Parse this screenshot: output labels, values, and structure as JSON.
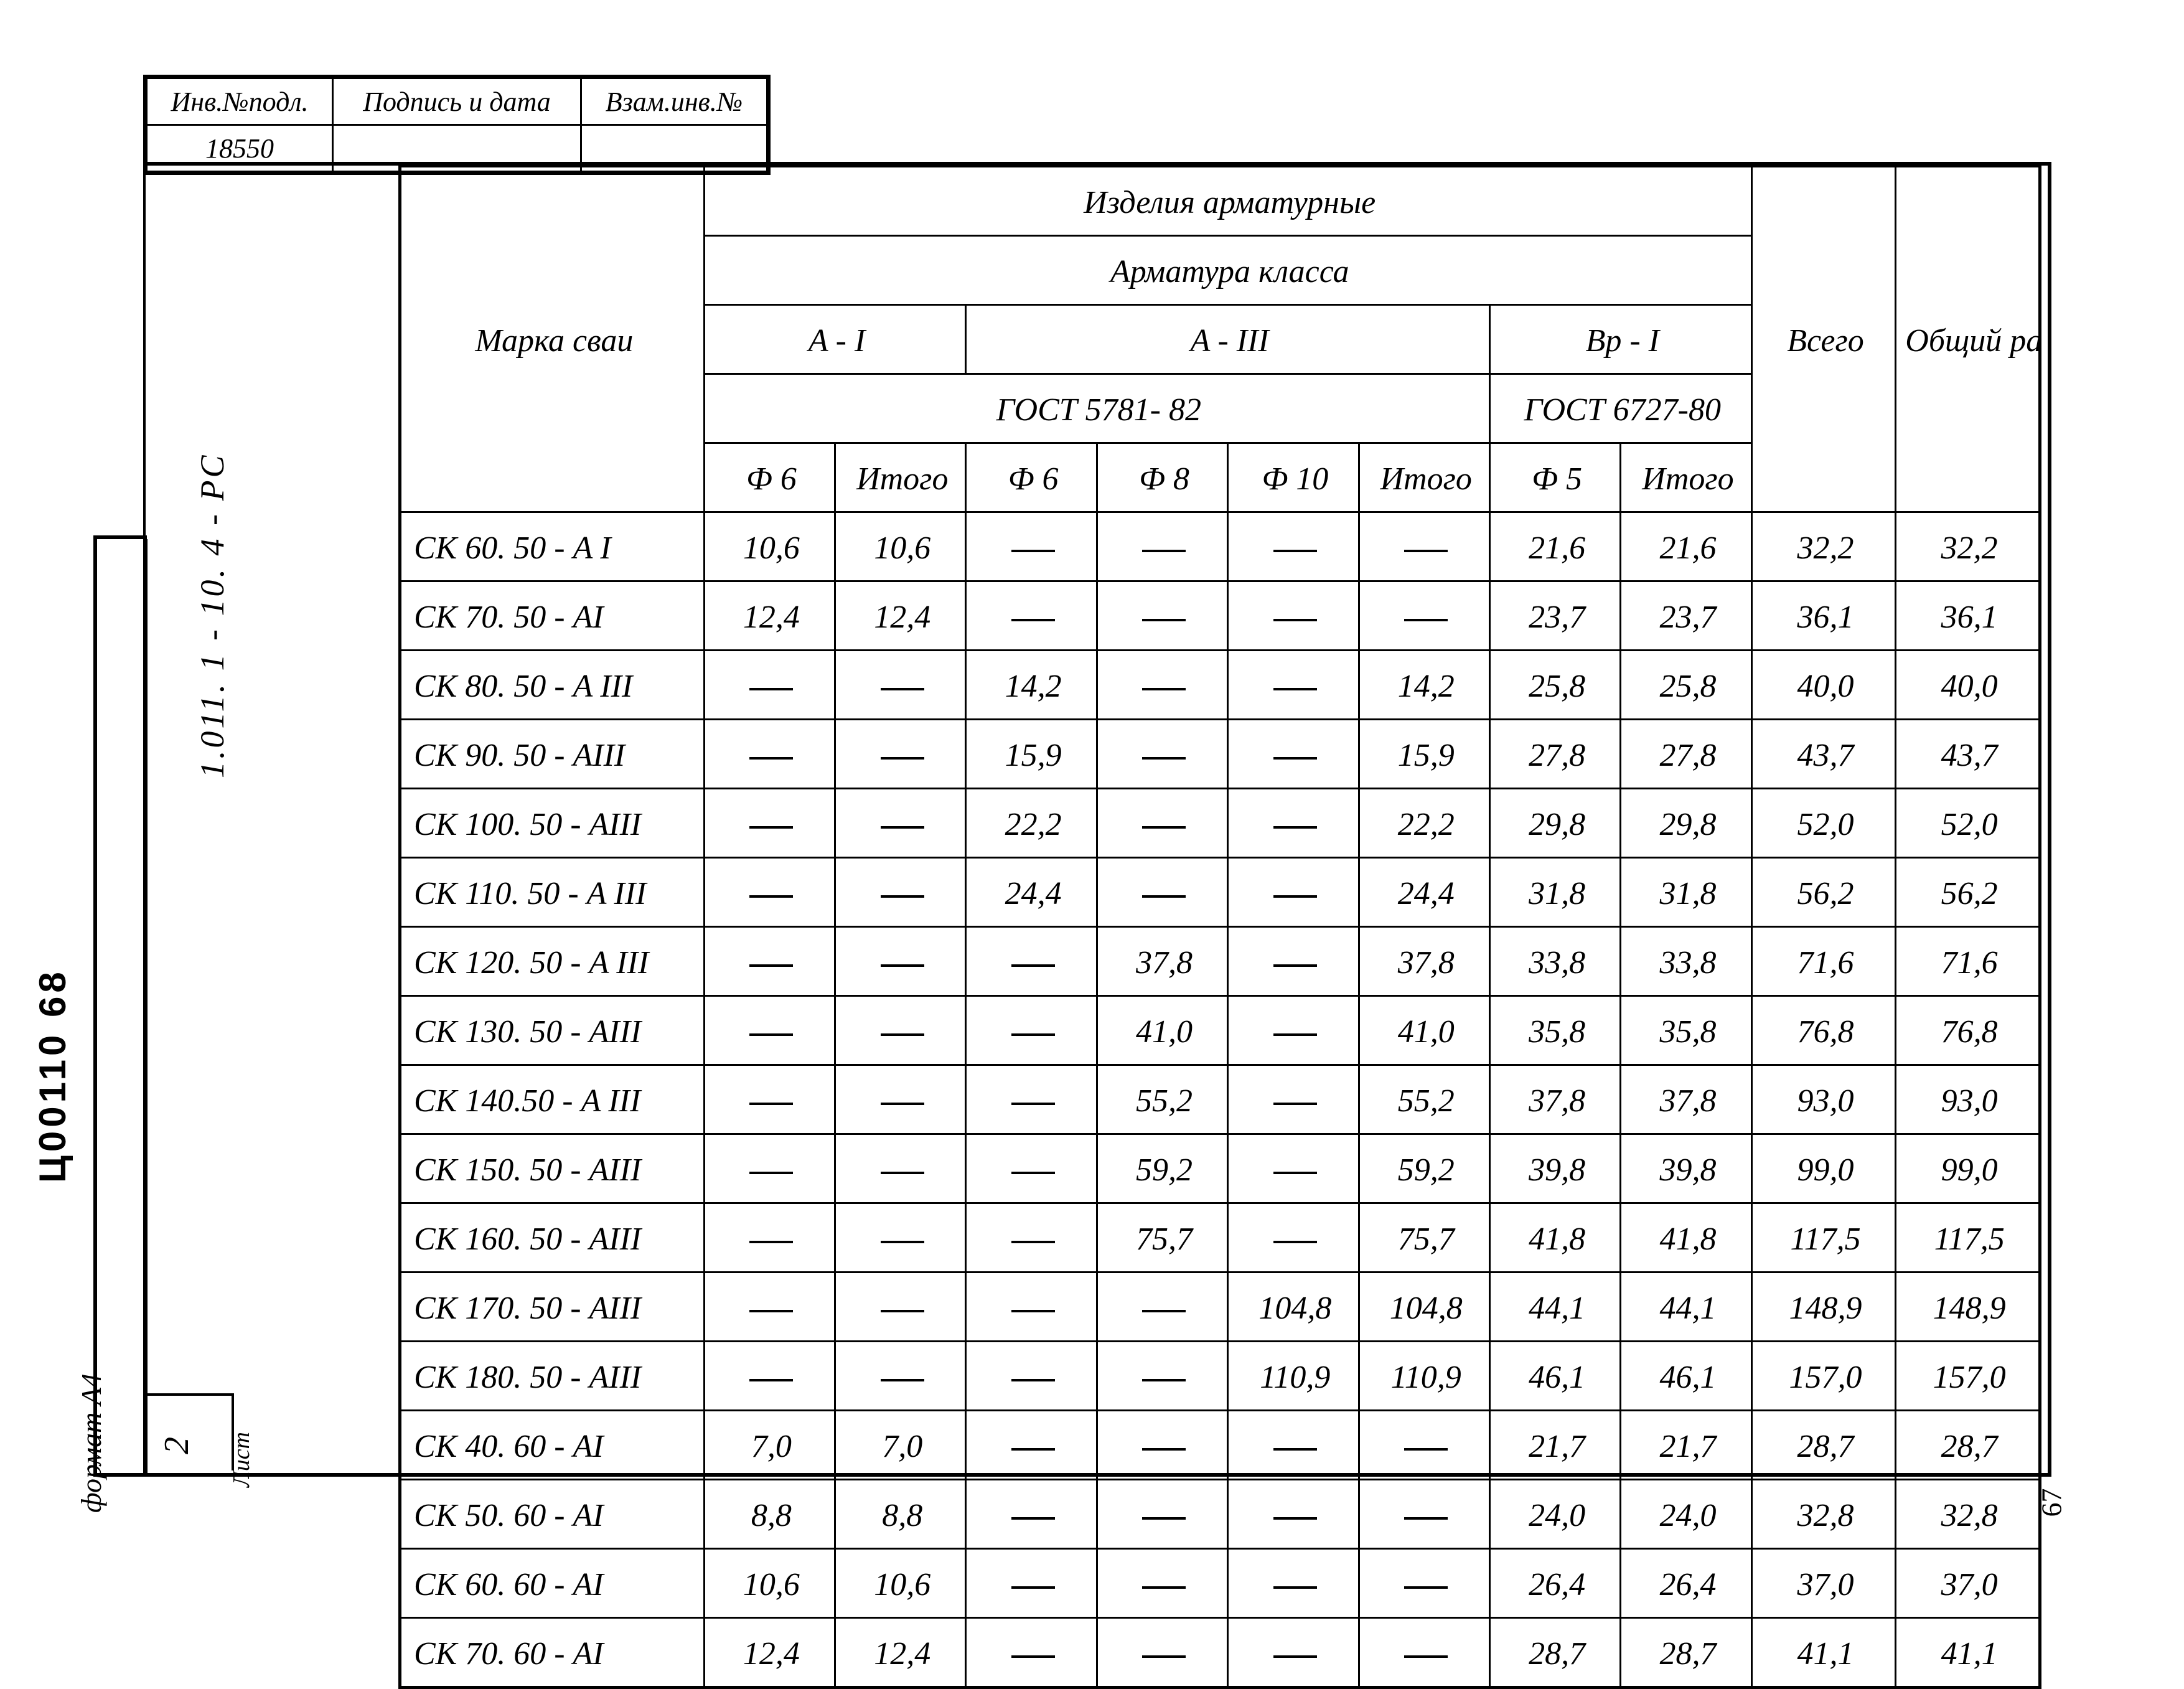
{
  "stamp": {
    "h1": "Инв.№подл.",
    "h2": "Подпись и дата",
    "h3": "Взам.инв.№",
    "inv_no": "18550"
  },
  "side": {
    "doc_code": "1.011. 1 - 10. 4 -   РС",
    "format": "формат А4",
    "print_code": "Ц00110   68",
    "sheet_label": "Лист",
    "sheet_no": "2",
    "page_right": "67"
  },
  "header": {
    "title_top": "Изделия    арматурные",
    "title_mid": "Арматура      класса",
    "col_mark": "Марка сваи",
    "grp_a1": "A - I",
    "grp_a3": "A - III",
    "grp_bp1": "Bp - I",
    "gost1": "ГОСТ  5781- 82",
    "gost2": "ГОСТ 6727-80",
    "col_total": "Всего",
    "col_grand": "Общий рас- ход",
    "d6": "Ф 6",
    "d8": "Ф 8",
    "d10": "Ф 10",
    "d5": "Ф 5",
    "itogo": "Итого"
  },
  "rows": [
    {
      "mark": "СК 60. 50 - A I",
      "a1_d6": "10,6",
      "a1_it": "10,6",
      "a3_d6": "",
      "a3_d8": "",
      "a3_d10": "",
      "a3_it": "",
      "bp_d5": "21,6",
      "bp_it": "21,6",
      "tot": "32,2",
      "grand": "32,2"
    },
    {
      "mark": "СК 70. 50 - AI",
      "a1_d6": "12,4",
      "a1_it": "12,4",
      "a3_d6": "",
      "a3_d8": "",
      "a3_d10": "",
      "a3_it": "",
      "bp_d5": "23,7",
      "bp_it": "23,7",
      "tot": "36,1",
      "grand": "36,1"
    },
    {
      "mark": "СК 80. 50 - A III",
      "a1_d6": "",
      "a1_it": "",
      "a3_d6": "14,2",
      "a3_d8": "",
      "a3_d10": "",
      "a3_it": "14,2",
      "bp_d5": "25,8",
      "bp_it": "25,8",
      "tot": "40,0",
      "grand": "40,0"
    },
    {
      "mark": "СК 90. 50 - AIII",
      "a1_d6": "",
      "a1_it": "",
      "a3_d6": "15,9",
      "a3_d8": "",
      "a3_d10": "",
      "a3_it": "15,9",
      "bp_d5": "27,8",
      "bp_it": "27,8",
      "tot": "43,7",
      "grand": "43,7"
    },
    {
      "mark": "СК 100. 50 - AIII",
      "a1_d6": "",
      "a1_it": "",
      "a3_d6": "22,2",
      "a3_d8": "",
      "a3_d10": "",
      "a3_it": "22,2",
      "bp_d5": "29,8",
      "bp_it": "29,8",
      "tot": "52,0",
      "grand": "52,0"
    },
    {
      "mark": "СК 110. 50 - A III",
      "a1_d6": "",
      "a1_it": "",
      "a3_d6": "24,4",
      "a3_d8": "",
      "a3_d10": "",
      "a3_it": "24,4",
      "bp_d5": "31,8",
      "bp_it": "31,8",
      "tot": "56,2",
      "grand": "56,2"
    },
    {
      "mark": "СК 120. 50 - A III",
      "a1_d6": "",
      "a1_it": "",
      "a3_d6": "",
      "a3_d8": "37,8",
      "a3_d10": "",
      "a3_it": "37,8",
      "bp_d5": "33,8",
      "bp_it": "33,8",
      "tot": "71,6",
      "grand": "71,6"
    },
    {
      "mark": "СК 130. 50 - AIII",
      "a1_d6": "",
      "a1_it": "",
      "a3_d6": "",
      "a3_d8": "41,0",
      "a3_d10": "",
      "a3_it": "41,0",
      "bp_d5": "35,8",
      "bp_it": "35,8",
      "tot": "76,8",
      "grand": "76,8"
    },
    {
      "mark": "СК 140.50 - A III",
      "a1_d6": "",
      "a1_it": "",
      "a3_d6": "",
      "a3_d8": "55,2",
      "a3_d10": "",
      "a3_it": "55,2",
      "bp_d5": "37,8",
      "bp_it": "37,8",
      "tot": "93,0",
      "grand": "93,0"
    },
    {
      "mark": "СК 150. 50 - AIII",
      "a1_d6": "",
      "a1_it": "",
      "a3_d6": "",
      "a3_d8": "59,2",
      "a3_d10": "",
      "a3_it": "59,2",
      "bp_d5": "39,8",
      "bp_it": "39,8",
      "tot": "99,0",
      "grand": "99,0"
    },
    {
      "mark": "СК 160. 50 - AIII",
      "a1_d6": "",
      "a1_it": "",
      "a3_d6": "",
      "a3_d8": "75,7",
      "a3_d10": "",
      "a3_it": "75,7",
      "bp_d5": "41,8",
      "bp_it": "41,8",
      "tot": "117,5",
      "grand": "117,5"
    },
    {
      "mark": "СК 170. 50 - AIII",
      "a1_d6": "",
      "a1_it": "",
      "a3_d6": "",
      "a3_d8": "",
      "a3_d10": "104,8",
      "a3_it": "104,8",
      "bp_d5": "44,1",
      "bp_it": "44,1",
      "tot": "148,9",
      "grand": "148,9"
    },
    {
      "mark": "СК 180. 50 - AIII",
      "a1_d6": "",
      "a1_it": "",
      "a3_d6": "",
      "a3_d8": "",
      "a3_d10": "110,9",
      "a3_it": "110,9",
      "bp_d5": "46,1",
      "bp_it": "46,1",
      "tot": "157,0",
      "grand": "157,0"
    },
    {
      "mark": "СК 40. 60 - AI",
      "a1_d6": "7,0",
      "a1_it": "7,0",
      "a3_d6": "",
      "a3_d8": "",
      "a3_d10": "",
      "a3_it": "",
      "bp_d5": "21,7",
      "bp_it": "21,7",
      "tot": "28,7",
      "grand": "28,7"
    },
    {
      "mark": "СК 50. 60 - AI",
      "a1_d6": "8,8",
      "a1_it": "8,8",
      "a3_d6": "",
      "a3_d8": "",
      "a3_d10": "",
      "a3_it": "",
      "bp_d5": "24,0",
      "bp_it": "24,0",
      "tot": "32,8",
      "grand": "32,8"
    },
    {
      "mark": "СК 60. 60 - AI",
      "a1_d6": "10,6",
      "a1_it": "10,6",
      "a3_d6": "",
      "a3_d8": "",
      "a3_d10": "",
      "a3_it": "",
      "bp_d5": "26,4",
      "bp_it": "26,4",
      "tot": "37,0",
      "grand": "37,0"
    },
    {
      "mark": "СК 70. 60 - AI",
      "a1_d6": "12,4",
      "a1_it": "12,4",
      "a3_d6": "",
      "a3_d8": "",
      "a3_d10": "",
      "a3_it": "",
      "bp_d5": "28,7",
      "bp_it": "28,7",
      "tot": "41,1",
      "grand": "41,1"
    }
  ]
}
